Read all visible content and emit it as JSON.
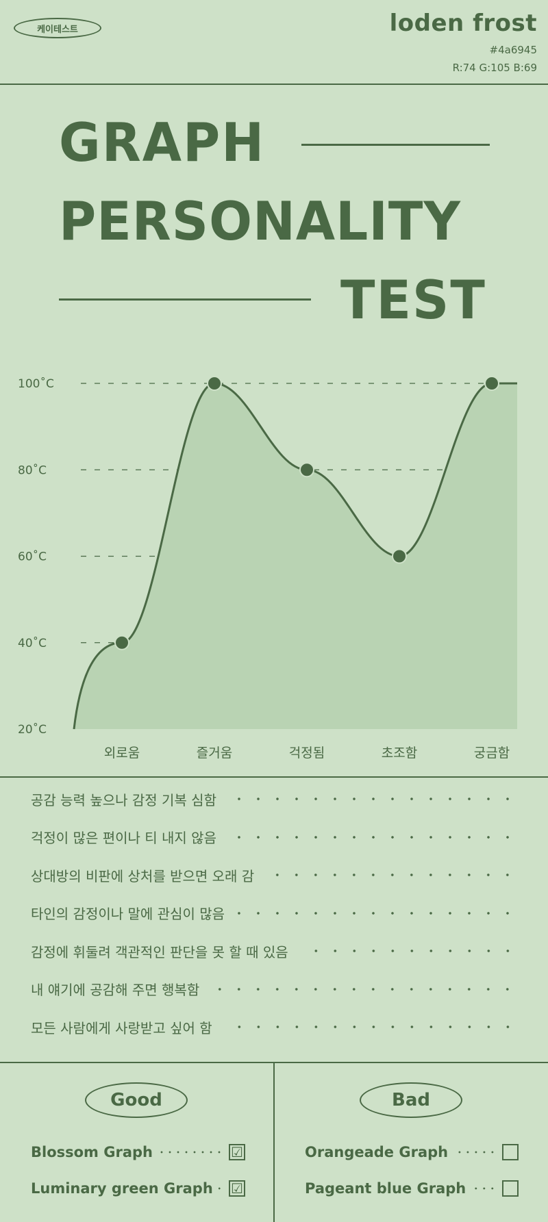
{
  "header": {
    "badge": "케이테스트",
    "color_name": "loden frost",
    "color_hex": "#4a6945",
    "color_rgb": "R:74  G:105  B:69"
  },
  "title": {
    "line1": "GRAPH",
    "line2": "PERSONALITY",
    "line3": "TEST"
  },
  "colors": {
    "primary": "#4a6945",
    "background": "#cee1c8",
    "fill": "#b9d3b3"
  },
  "chart_data": {
    "type": "area",
    "categories": [
      "외로움",
      "즐거움",
      "걱정됨",
      "초조함",
      "궁금함"
    ],
    "values": [
      40,
      100,
      80,
      60,
      100
    ],
    "ylim": [
      20,
      100
    ],
    "yticks": [
      "20˚C",
      "40˚C",
      "60˚C",
      "80˚C",
      "100˚C"
    ],
    "grid": true
  },
  "traits": [
    "공감 능력 높으나 감정 기복 심함",
    "걱정이 많은 편이나 티 내지 않음",
    "상대방의 비판에 상처를 받으면 오래 감",
    "타인의 감정이나 말에 관심이 많음",
    "감정에 휘둘려 객관적인 판단을 못 할 때 있음",
    "내 얘기에 공감해 주면 행복함",
    "모든 사람에게 사랑받고 싶어 함"
  ],
  "good": {
    "label": "Good",
    "items": [
      {
        "name": "Blossom Graph",
        "mark": "☑"
      },
      {
        "name": "Luminary green Graph",
        "mark": "☑"
      }
    ]
  },
  "bad": {
    "label": "Bad",
    "items": [
      {
        "name": "Orangeade Graph",
        "mark": ""
      },
      {
        "name": "Pageant blue Graph",
        "mark": ""
      }
    ]
  }
}
